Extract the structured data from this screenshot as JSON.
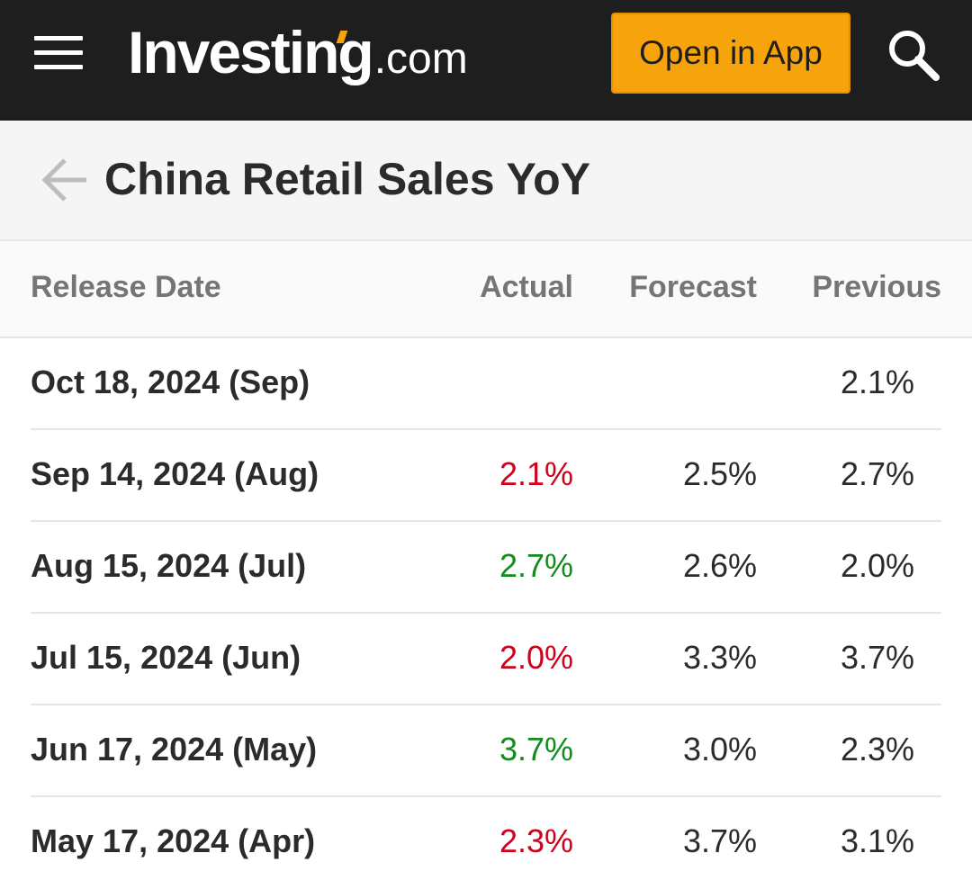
{
  "header": {
    "logo_main": "Investing",
    "logo_suffix": ".com",
    "open_app_label": "Open in App",
    "accent_color": "#f7a30c"
  },
  "page": {
    "title": "China Retail Sales YoY"
  },
  "table": {
    "columns": {
      "release_date": "Release Date",
      "actual": "Actual",
      "forecast": "Forecast",
      "previous": "Previous"
    },
    "rows": [
      {
        "date": "Oct 18, 2024 (Sep)",
        "actual": "",
        "actual_status": "",
        "forecast": "",
        "previous": "2.1%"
      },
      {
        "date": "Sep 14, 2024 (Aug)",
        "actual": "2.1%",
        "actual_status": "negative",
        "forecast": "2.5%",
        "previous": "2.7%"
      },
      {
        "date": "Aug 15, 2024 (Jul)",
        "actual": "2.7%",
        "actual_status": "positive",
        "forecast": "2.6%",
        "previous": "2.0%"
      },
      {
        "date": "Jul 15, 2024 (Jun)",
        "actual": "2.0%",
        "actual_status": "negative",
        "forecast": "3.3%",
        "previous": "3.7%"
      },
      {
        "date": "Jun 17, 2024 (May)",
        "actual": "3.7%",
        "actual_status": "positive",
        "forecast": "3.0%",
        "previous": "2.3%"
      },
      {
        "date": "May 17, 2024 (Apr)",
        "actual": "2.3%",
        "actual_status": "negative",
        "forecast": "3.7%",
        "previous": "3.1%"
      }
    ],
    "status_colors": {
      "negative": "#d0021b",
      "positive": "#128c1c"
    }
  }
}
